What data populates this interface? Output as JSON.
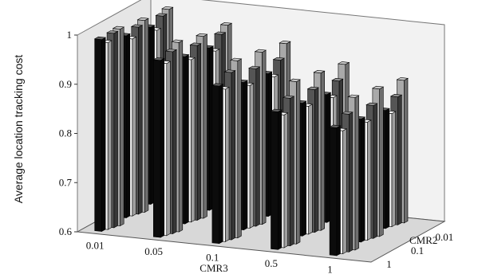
{
  "chart_data": {
    "type": "bar",
    "title": "",
    "ylabel": "Average location tracking cost",
    "xlabel": "CMR3",
    "zlabel": "CMR2",
    "ylim": [
      0.6,
      1.0
    ],
    "yticks": [
      "0.6",
      "0.7",
      "0.8",
      "0.9",
      "1"
    ],
    "categories": [
      "0.01",
      "0.05",
      "0.1",
      "0.5",
      "1"
    ],
    "depth_categories": [
      "1",
      "0.1",
      "0.01"
    ],
    "series": [
      {
        "color": "#0c0c0c",
        "values": [
          [
            0.99,
            0.96,
            0.92,
            0.88,
            0.86
          ],
          [
            0.97,
            0.94,
            0.9,
            0.87,
            0.85
          ],
          [
            0.96,
            0.93,
            0.89,
            0.86,
            0.84
          ]
        ]
      },
      {
        "color": "#f4f4f4",
        "values": [
          [
            0.98,
            0.95,
            0.91,
            0.87,
            0.85
          ],
          [
            0.96,
            0.93,
            0.89,
            0.86,
            0.84
          ],
          [
            0.95,
            0.92,
            0.88,
            0.85,
            0.83
          ]
        ]
      },
      {
        "color": "#555555",
        "values": [
          [
            0.995,
            0.97,
            0.94,
            0.9,
            0.88
          ],
          [
            0.98,
            0.955,
            0.92,
            0.89,
            0.87
          ],
          [
            0.975,
            0.95,
            0.91,
            0.88,
            0.86
          ]
        ]
      },
      {
        "color": "#a9a9a9",
        "values": [
          [
            1.0,
            0.985,
            0.96,
            0.93,
            0.91
          ],
          [
            0.99,
            0.97,
            0.95,
            0.92,
            0.9
          ],
          [
            0.985,
            0.965,
            0.94,
            0.91,
            0.89
          ]
        ]
      }
    ],
    "grid": false,
    "legend": "none"
  }
}
